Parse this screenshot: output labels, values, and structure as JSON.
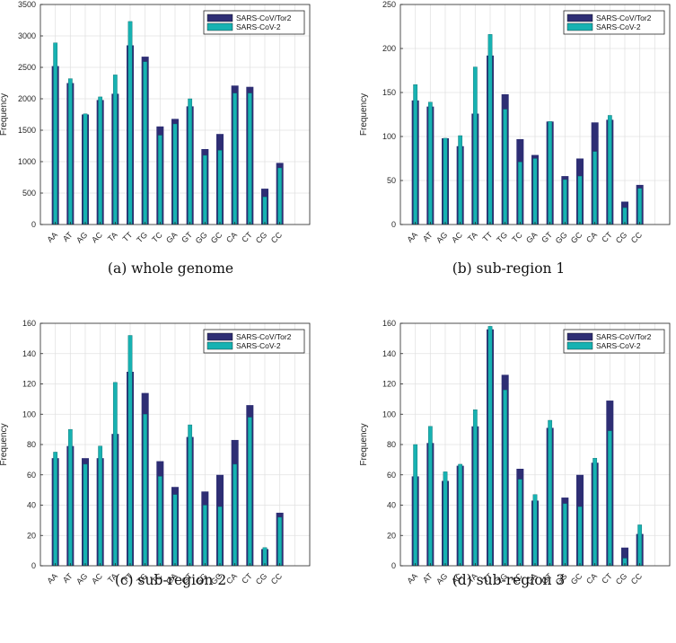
{
  "colors": {
    "series1": "#2e2e74",
    "series2": "#17b2b2",
    "axis": "#262626",
    "grid": "#e2e2e2"
  },
  "chart_data": [
    {
      "type": "bar",
      "caption": "(a) whole genome",
      "categories": [
        "AA",
        "AT",
        "AG",
        "AC",
        "TA",
        "TT",
        "TG",
        "TC",
        "GA",
        "GT",
        "GG",
        "GC",
        "CA",
        "CT",
        "CG",
        "CC"
      ],
      "series": [
        {
          "name": "SARS-CoV/Tor2",
          "values": [
            2520,
            2250,
            1750,
            1980,
            2080,
            2850,
            2670,
            1560,
            1680,
            1880,
            1200,
            1440,
            2210,
            2190,
            570,
            980
          ]
        },
        {
          "name": "SARS-CoV-2",
          "values": [
            2890,
            2320,
            1760,
            2030,
            2380,
            3230,
            2590,
            1420,
            1600,
            2000,
            1100,
            1180,
            2090,
            2090,
            440,
            900
          ]
        }
      ],
      "ylabel": "Frequency",
      "ylim": [
        0,
        3500
      ],
      "yticks": [
        0,
        500,
        1000,
        1500,
        2000,
        2500,
        3000,
        3500
      ],
      "legend_position": "top-right"
    },
    {
      "type": "bar",
      "caption": "(b) sub-region 1",
      "categories": [
        "AA",
        "AT",
        "AG",
        "AC",
        "TA",
        "TT",
        "TG",
        "TC",
        "GA",
        "GT",
        "GG",
        "GC",
        "CA",
        "CT",
        "CG",
        "CC"
      ],
      "series": [
        {
          "name": "SARS-CoV/Tor2",
          "values": [
            141,
            134,
            98,
            89,
            126,
            192,
            148,
            97,
            79,
            117,
            55,
            75,
            116,
            119,
            26,
            45
          ]
        },
        {
          "name": "SARS-CoV-2",
          "values": [
            159,
            139,
            98,
            101,
            179,
            216,
            131,
            71,
            75,
            117,
            51,
            55,
            83,
            124,
            19,
            41
          ]
        }
      ],
      "ylabel": "Frequency",
      "ylim": [
        0,
        250
      ],
      "yticks": [
        0,
        50,
        100,
        150,
        200,
        250
      ],
      "legend_position": "top-right"
    },
    {
      "type": "bar",
      "caption": "(c) sub-region 2",
      "categories": [
        "AA",
        "AT",
        "AG",
        "AC",
        "TA",
        "TT",
        "TG",
        "TC",
        "GA",
        "GT",
        "GG",
        "GC",
        "CA",
        "CT",
        "CG",
        "CC"
      ],
      "series": [
        {
          "name": "SARS-CoV/Tor2",
          "values": [
            71,
            79,
            71,
            71,
            87,
            128,
            114,
            69,
            52,
            85,
            49,
            60,
            83,
            106,
            11,
            35
          ]
        },
        {
          "name": "SARS-CoV-2",
          "values": [
            75,
            90,
            67,
            79,
            121,
            152,
            100,
            59,
            47,
            93,
            40,
            39,
            67,
            98,
            12,
            32
          ]
        }
      ],
      "ylabel": "Frequency",
      "ylim": [
        0,
        160
      ],
      "yticks": [
        0,
        20,
        40,
        60,
        80,
        100,
        120,
        140,
        160
      ],
      "legend_position": "top-right"
    },
    {
      "type": "bar",
      "caption": "(d) sub-region 3",
      "categories": [
        "AA",
        "AT",
        "AG",
        "AC",
        "TA",
        "TT",
        "TG",
        "TC",
        "GA",
        "GT",
        "GG",
        "GC",
        "CA",
        "CT",
        "CG",
        "CC"
      ],
      "series": [
        {
          "name": "SARS-CoV/Tor2",
          "values": [
            59,
            81,
            56,
            66,
            92,
            156,
            126,
            64,
            43,
            91,
            45,
            60,
            68,
            109,
            12,
            21
          ]
        },
        {
          "name": "SARS-CoV-2",
          "values": [
            80,
            92,
            62,
            67,
            103,
            158,
            116,
            57,
            47,
            96,
            41,
            39,
            71,
            89,
            5,
            27
          ]
        }
      ],
      "ylabel": "Frequency",
      "ylim": [
        0,
        160
      ],
      "yticks": [
        0,
        20,
        40,
        60,
        80,
        100,
        120,
        140,
        160
      ],
      "legend_position": "top-right"
    }
  ]
}
